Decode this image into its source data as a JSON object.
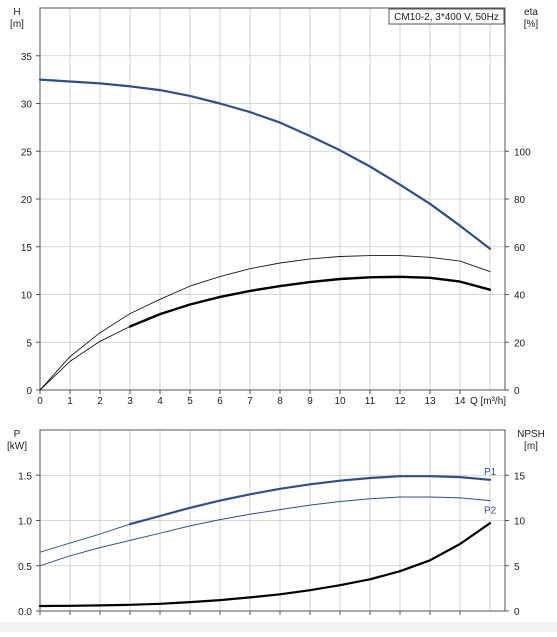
{
  "chart_data": [
    {
      "type": "line",
      "title": "CM10-2, 3*400 V, 50Hz",
      "x": {
        "label": "Q [m³/h]",
        "lim": [
          0,
          15.5
        ],
        "ticks": [
          0,
          1,
          2,
          3,
          4,
          5,
          6,
          7,
          8,
          9,
          10,
          11,
          12,
          13,
          14
        ]
      },
      "y_left": {
        "label_top": "H",
        "label_unit": "[m]",
        "lim": [
          0,
          40
        ],
        "ticks": [
          0,
          5,
          10,
          15,
          20,
          25,
          30,
          35
        ]
      },
      "y_right": {
        "label_top": "eta",
        "label_unit": "[%]",
        "lim": [
          0,
          160
        ],
        "ticks": [
          0,
          20,
          40,
          60,
          80,
          100
        ]
      },
      "grid": true,
      "series": [
        {
          "axis": "left",
          "color": "#2e4f8f",
          "width": 2.2,
          "x": [
            0,
            1,
            2,
            3,
            4,
            5,
            6,
            7,
            8,
            9,
            10,
            11,
            12,
            13,
            14,
            15
          ],
          "y": [
            32.5,
            32.3,
            32.1,
            31.8,
            31.4,
            30.8,
            30.0,
            29.1,
            28.0,
            26.6,
            25.1,
            23.4,
            21.5,
            19.5,
            17.2,
            14.8
          ]
        },
        {
          "axis": "right",
          "color": "#1a1a1a",
          "width": 0.9,
          "x": [
            0,
            1,
            2,
            3,
            4,
            5,
            6,
            7,
            8,
            9,
            10,
            11,
            12,
            13,
            14,
            15
          ],
          "y": [
            0,
            14,
            24,
            32,
            38,
            43.5,
            47.5,
            50.8,
            53.2,
            54.9,
            55.9,
            56.3,
            56.3,
            55.6,
            54,
            49.6
          ]
        },
        {
          "axis": "right",
          "color": "#1a1a1a",
          "width": 0.9,
          "x": [
            0,
            1,
            2,
            3
          ],
          "y": [
            0,
            12,
            20.4,
            26.6
          ]
        },
        {
          "axis": "right",
          "color": "#000000",
          "width": 2.4,
          "x": [
            3,
            4,
            5,
            6,
            7,
            8,
            9,
            10,
            11,
            12,
            13,
            14,
            15
          ],
          "y": [
            26.6,
            31.8,
            35.8,
            39,
            41.5,
            43.5,
            45.2,
            46.5,
            47.2,
            47.4,
            47,
            45.4,
            42
          ]
        }
      ]
    },
    {
      "type": "line",
      "x": {
        "lim": [
          0,
          15.5
        ],
        "ticks": [
          0,
          1,
          2,
          3,
          4,
          5,
          6,
          7,
          8,
          9,
          10,
          11,
          12,
          13,
          14
        ]
      },
      "y_left": {
        "label_top": "P",
        "label_unit": "[kW]",
        "lim": [
          0,
          2.0
        ],
        "ticks": [
          "0.0",
          "0.5",
          "1.0",
          "1.5"
        ]
      },
      "y_right": {
        "label_top": "NPSH",
        "label_unit": "[m]",
        "lim": [
          0,
          20
        ],
        "ticks": [
          0,
          5,
          10,
          15
        ]
      },
      "grid": true,
      "series": [
        {
          "name": "P1",
          "axis": "left",
          "color": "#2e4f8f",
          "width": 0.9,
          "x": [
            0,
            1,
            2,
            3
          ],
          "y": [
            0.65,
            0.75,
            0.85,
            0.96
          ]
        },
        {
          "name": "P1",
          "axis": "left",
          "color": "#2e4f8f",
          "width": 2.2,
          "x": [
            3,
            4,
            5,
            6,
            7,
            8,
            9,
            10,
            11,
            12,
            13,
            14,
            15
          ],
          "y": [
            0.96,
            1.05,
            1.14,
            1.22,
            1.29,
            1.35,
            1.4,
            1.44,
            1.47,
            1.49,
            1.49,
            1.48,
            1.45
          ]
        },
        {
          "name": "P2",
          "axis": "left",
          "color": "#2e4f8f",
          "width": 1.0,
          "x": [
            0,
            1,
            2,
            3,
            4,
            5,
            6,
            7,
            8,
            9,
            10,
            11,
            12,
            13,
            14,
            15
          ],
          "y": [
            0.5,
            0.61,
            0.7,
            0.78,
            0.86,
            0.94,
            1.01,
            1.07,
            1.12,
            1.17,
            1.21,
            1.24,
            1.26,
            1.26,
            1.25,
            1.22
          ]
        },
        {
          "axis": "right",
          "color": "#000000",
          "width": 2.2,
          "x": [
            0,
            1,
            2,
            3,
            4,
            5,
            6,
            7,
            8,
            9,
            10,
            11,
            12,
            13,
            14,
            15
          ],
          "y": [
            0.55,
            0.58,
            0.62,
            0.68,
            0.8,
            0.98,
            1.2,
            1.5,
            1.85,
            2.3,
            2.85,
            3.5,
            4.4,
            5.6,
            7.4,
            9.7
          ]
        }
      ],
      "annotations": [
        {
          "text": "P1",
          "x": 15,
          "y": 1.45
        },
        {
          "text": "P2",
          "x": 15,
          "y": 1.22
        }
      ]
    }
  ]
}
